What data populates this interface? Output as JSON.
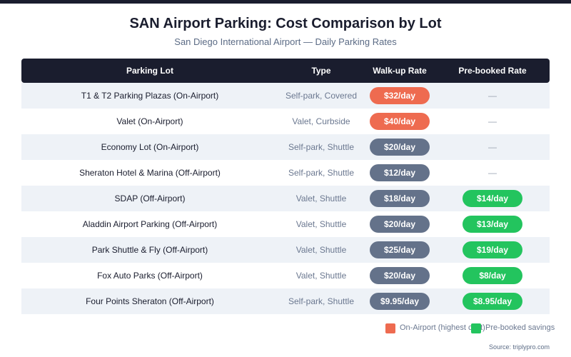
{
  "title": "SAN Airport Parking: Cost Comparison by Lot",
  "subtitle": "San Diego International Airport — Daily Parking Rates",
  "table": {
    "headers": {
      "lot": "Parking Lot",
      "type": "Type",
      "walkup": "Walk-up Rate",
      "prebooked": "Pre-booked Rate"
    },
    "rows": [
      {
        "lot": "T1 & T2 Parking Plazas (On-Airport)",
        "type": "Self-park, Covered",
        "walkup": "$32/day",
        "walkup_kind": "on",
        "prebooked": "—"
      },
      {
        "lot": "Valet (On-Airport)",
        "type": "Valet, Curbside",
        "walkup": "$40/day",
        "walkup_kind": "on",
        "prebooked": "—"
      },
      {
        "lot": "Economy Lot (On-Airport)",
        "type": "Self-park, Shuttle",
        "walkup": "$20/day",
        "walkup_kind": "off",
        "prebooked": "—"
      },
      {
        "lot": "Sheraton Hotel & Marina (Off-Airport)",
        "type": "Self-park, Shuttle",
        "walkup": "$12/day",
        "walkup_kind": "off",
        "prebooked": "—"
      },
      {
        "lot": "SDAP (Off-Airport)",
        "type": "Valet, Shuttle",
        "walkup": "$18/day",
        "walkup_kind": "off",
        "prebooked": "$14/day"
      },
      {
        "lot": "Aladdin Airport Parking (Off-Airport)",
        "type": "Valet, Shuttle",
        "walkup": "$20/day",
        "walkup_kind": "off",
        "prebooked": "$13/day"
      },
      {
        "lot": "Park Shuttle & Fly (Off-Airport)",
        "type": "Valet, Shuttle",
        "walkup": "$25/day",
        "walkup_kind": "off",
        "prebooked": "$19/day"
      },
      {
        "lot": "Fox Auto Parks (Off-Airport)",
        "type": "Valet, Shuttle",
        "walkup": "$20/day",
        "walkup_kind": "off",
        "prebooked": "$8/day"
      },
      {
        "lot": "Four Points Sheraton (Off-Airport)",
        "type": "Self-park, Shuttle",
        "walkup": "$9.95/day",
        "walkup_kind": "off",
        "prebooked": "$8.95/day"
      }
    ]
  },
  "legend": {
    "onairport": "On-Airport (highest cost)",
    "prebooked": "Pre-booked savings"
  },
  "source": "Source: triplypro.com",
  "colors": {
    "header_bg": "#1a1d2e",
    "on_airport": "#ee6b50",
    "off_airport": "#64728a",
    "prebooked": "#23c45e",
    "row_alt": "#eef2f7"
  }
}
